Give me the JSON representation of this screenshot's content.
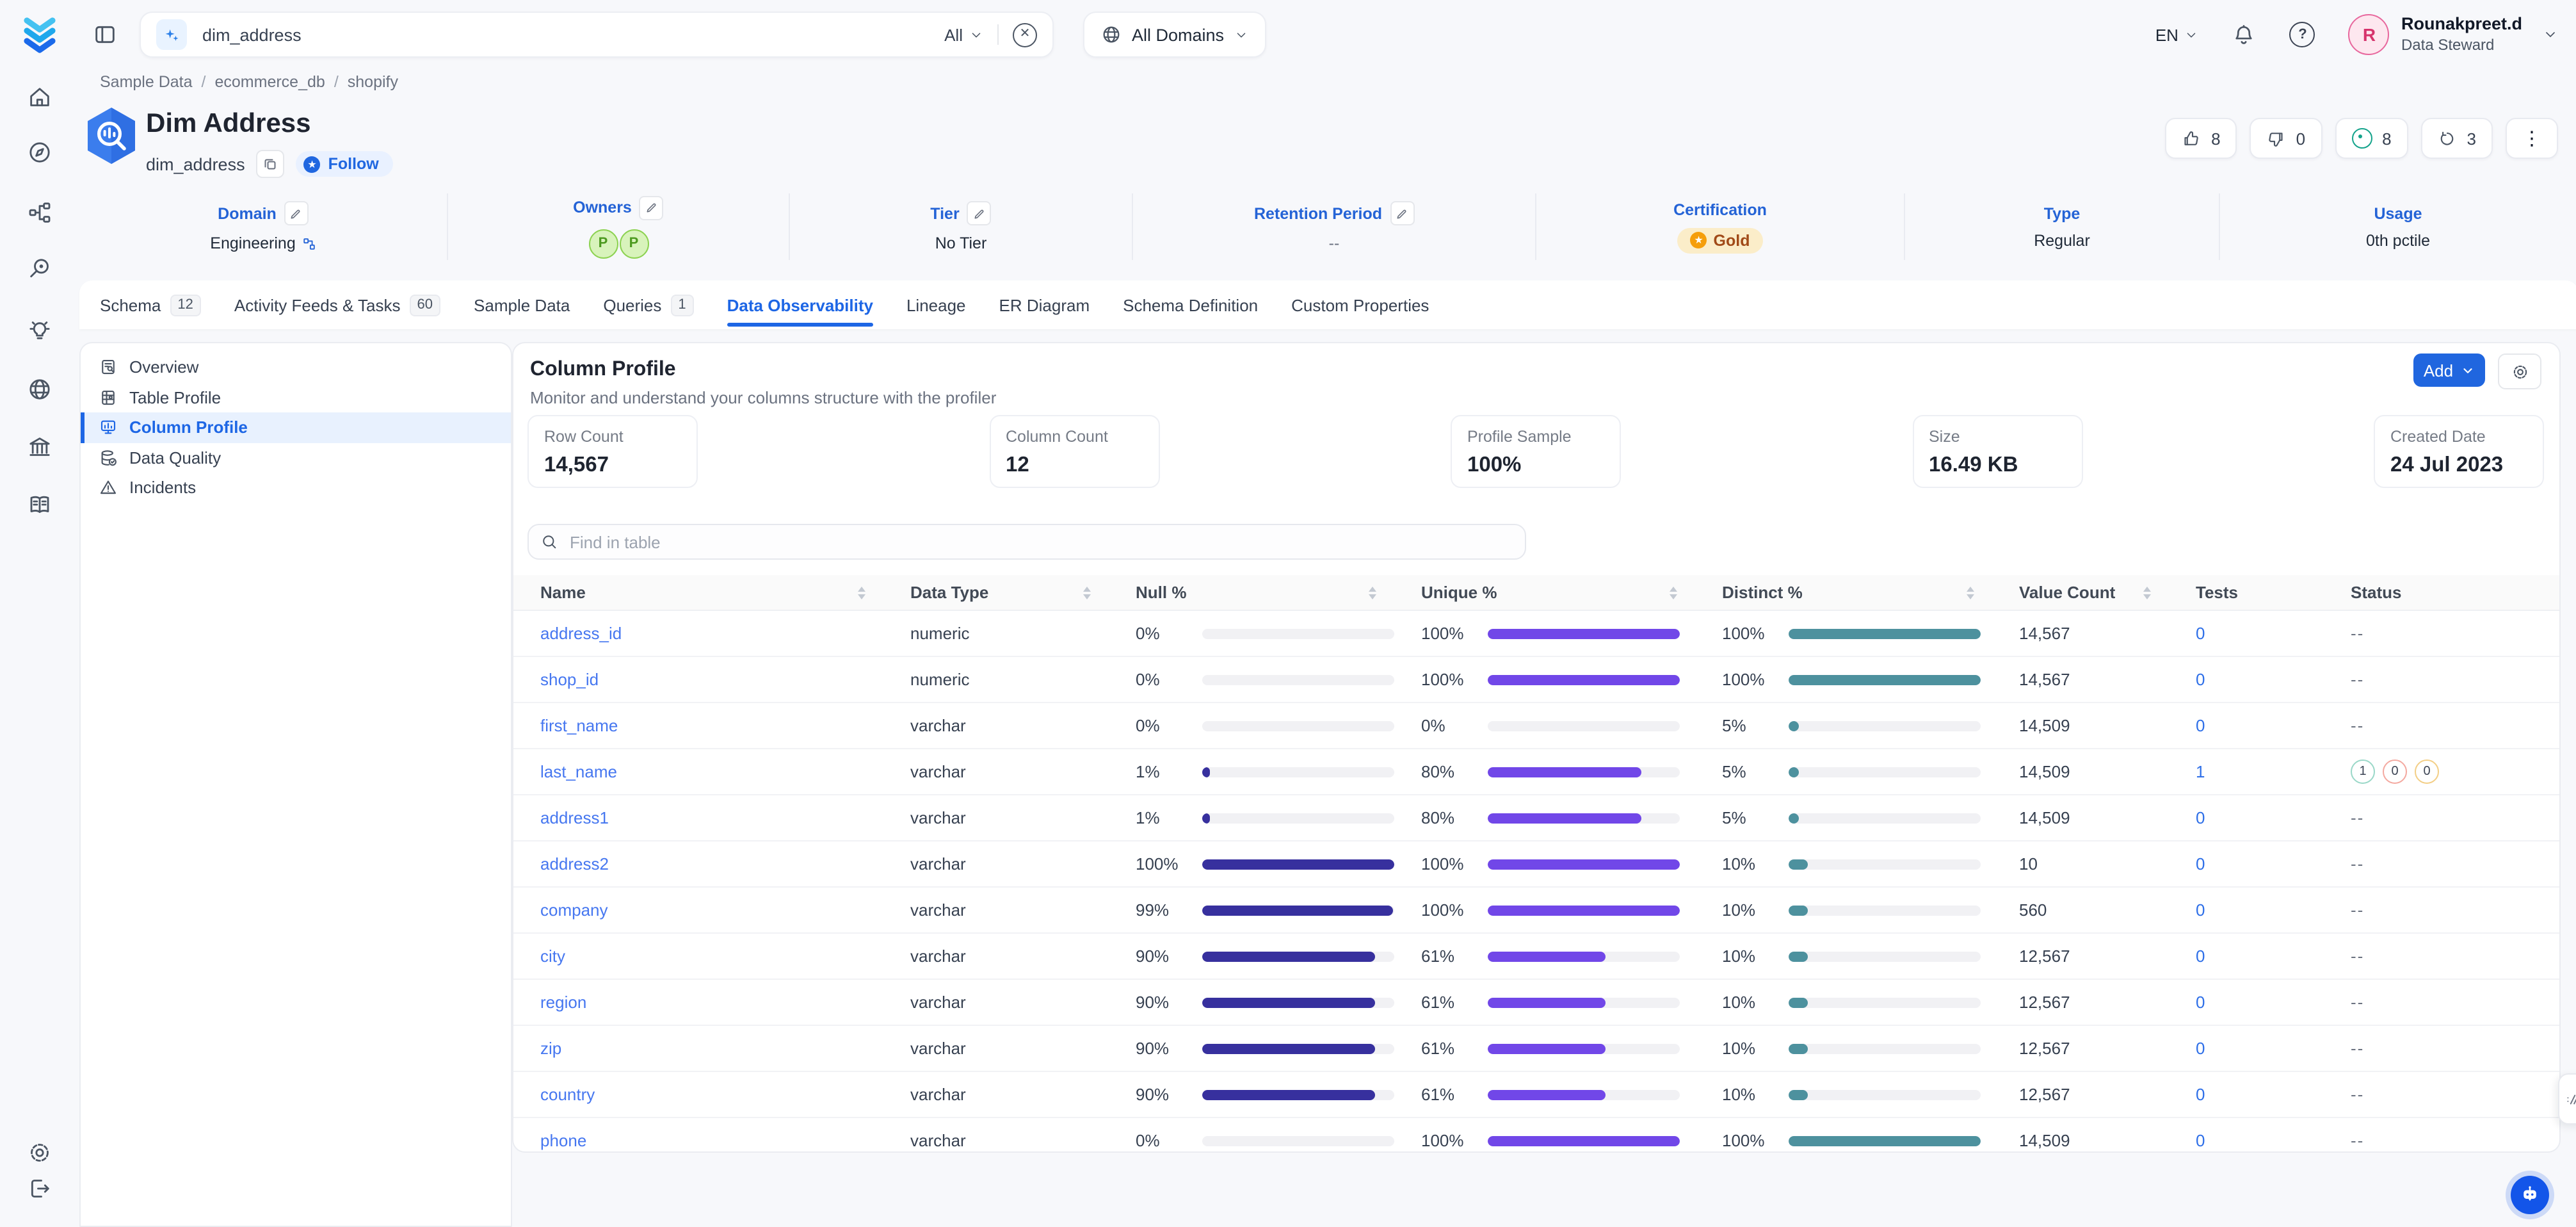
{
  "topbar": {
    "search": {
      "value": "dim_address",
      "scope": "All"
    },
    "domains_filter": "All Domains",
    "language": "EN",
    "user": {
      "initial": "R",
      "name": "Rounakpreet.d",
      "role": "Data Steward"
    }
  },
  "breadcrumb": [
    "Sample Data",
    "ecommerce_db",
    "shopify"
  ],
  "entity": {
    "title": "Dim Address",
    "name": "dim_address",
    "follow_label": "Follow",
    "actions": {
      "likes": "8",
      "dislikes": "0",
      "conversations": "8",
      "versions": "3"
    }
  },
  "metadata": [
    {
      "label": "Domain",
      "value": "Engineering",
      "editable": true,
      "kind": "domain"
    },
    {
      "label": "Owners",
      "avatars": [
        "P",
        "P"
      ],
      "editable": true,
      "kind": "owners"
    },
    {
      "label": "Tier",
      "value": "No Tier",
      "editable": true,
      "kind": "text"
    },
    {
      "label": "Retention Period",
      "value": "--",
      "editable": true,
      "kind": "text"
    },
    {
      "label": "Certification",
      "value": "Gold",
      "editable": false,
      "kind": "certification"
    },
    {
      "label": "Type",
      "value": "Regular",
      "editable": false,
      "kind": "text"
    },
    {
      "label": "Usage",
      "value": "0th pctile",
      "editable": false,
      "kind": "text"
    }
  ],
  "tabs": [
    {
      "label": "Schema",
      "count": "12"
    },
    {
      "label": "Activity Feeds & Tasks",
      "count": "60"
    },
    {
      "label": "Sample Data"
    },
    {
      "label": "Queries",
      "count": "1"
    },
    {
      "label": "Data Observability",
      "active": true
    },
    {
      "label": "Lineage"
    },
    {
      "label": "ER Diagram"
    },
    {
      "label": "Schema Definition"
    },
    {
      "label": "Custom Properties"
    }
  ],
  "sidenav": [
    {
      "label": "Overview",
      "icon": "overview-icon"
    },
    {
      "label": "Table Profile",
      "icon": "table-profile-icon"
    },
    {
      "label": "Column Profile",
      "icon": "column-profile-icon",
      "active": true
    },
    {
      "label": "Data Quality",
      "icon": "data-quality-icon"
    },
    {
      "label": "Incidents",
      "icon": "incidents-icon"
    }
  ],
  "profile": {
    "heading": "Column Profile",
    "subheading": "Monitor and understand your columns structure with the profiler",
    "add_button": "Add",
    "summary_cards": [
      {
        "label": "Row Count",
        "value": "14,567"
      },
      {
        "label": "Column Count",
        "value": "12"
      },
      {
        "label": "Profile Sample",
        "value": "100%"
      },
      {
        "label": "Size",
        "value": "16.49 KB"
      },
      {
        "label": "Created Date",
        "value": "24 Jul 2023"
      }
    ],
    "search_placeholder": "Find in table"
  },
  "table": {
    "columns": [
      {
        "label": "Name",
        "sortable": true
      },
      {
        "label": "Data Type",
        "sortable": true
      },
      {
        "label": "Null %",
        "sortable": true
      },
      {
        "label": "Unique %",
        "sortable": true
      },
      {
        "label": "Distinct %",
        "sortable": true
      },
      {
        "label": "Value Count",
        "sortable": true
      },
      {
        "label": "Tests",
        "sortable": false
      },
      {
        "label": "Status",
        "sortable": false
      }
    ],
    "rows": [
      {
        "name": "address_id",
        "data_type": "numeric",
        "null_pct": 0,
        "unique_pct": 100,
        "distinct_pct": 100,
        "value_count": "14,567",
        "tests": "0",
        "status": "--"
      },
      {
        "name": "shop_id",
        "data_type": "numeric",
        "null_pct": 0,
        "unique_pct": 100,
        "distinct_pct": 100,
        "value_count": "14,567",
        "tests": "0",
        "status": "--"
      },
      {
        "name": "first_name",
        "data_type": "varchar",
        "null_pct": 0,
        "unique_pct": 0,
        "distinct_pct": 5,
        "value_count": "14,509",
        "tests": "0",
        "status": "--"
      },
      {
        "name": "last_name",
        "data_type": "varchar",
        "null_pct": 1,
        "unique_pct": 80,
        "distinct_pct": 5,
        "value_count": "14,509",
        "tests": "1",
        "status_badges": [
          {
            "value": "1",
            "state": "success"
          },
          {
            "value": "0",
            "state": "failed"
          },
          {
            "value": "0",
            "state": "aborted"
          }
        ]
      },
      {
        "name": "address1",
        "data_type": "varchar",
        "null_pct": 1,
        "unique_pct": 80,
        "distinct_pct": 5,
        "value_count": "14,509",
        "tests": "0",
        "status": "--"
      },
      {
        "name": "address2",
        "data_type": "varchar",
        "null_pct": 100,
        "unique_pct": 100,
        "distinct_pct": 10,
        "value_count": "10",
        "tests": "0",
        "status": "--"
      },
      {
        "name": "company",
        "data_type": "varchar",
        "null_pct": 99,
        "unique_pct": 100,
        "distinct_pct": 10,
        "value_count": "560",
        "tests": "0",
        "status": "--"
      },
      {
        "name": "city",
        "data_type": "varchar",
        "null_pct": 90,
        "unique_pct": 61,
        "distinct_pct": 10,
        "value_count": "12,567",
        "tests": "0",
        "status": "--"
      },
      {
        "name": "region",
        "data_type": "varchar",
        "null_pct": 90,
        "unique_pct": 61,
        "distinct_pct": 10,
        "value_count": "12,567",
        "tests": "0",
        "status": "--"
      },
      {
        "name": "zip",
        "data_type": "varchar",
        "null_pct": 90,
        "unique_pct": 61,
        "distinct_pct": 10,
        "value_count": "12,567",
        "tests": "0",
        "status": "--"
      },
      {
        "name": "country",
        "data_type": "varchar",
        "null_pct": 90,
        "unique_pct": 61,
        "distinct_pct": 10,
        "value_count": "12,567",
        "tests": "0",
        "status": "--"
      },
      {
        "name": "phone",
        "data_type": "varchar",
        "null_pct": 0,
        "unique_pct": 100,
        "distinct_pct": 100,
        "value_count": "14,509",
        "tests": "0",
        "status": "--"
      }
    ]
  },
  "rail_icons": [
    "home",
    "explore",
    "lineage",
    "observability",
    "insights",
    "domains",
    "govern",
    "glossary"
  ],
  "rail_bottom_icons": [
    "settings",
    "logout"
  ],
  "colors": {
    "primary": "#2067E0",
    "null_bar": "#37309E",
    "unique_bar": "#7147E8",
    "distinct_bar": "#4D919E",
    "certification_gold": "#F59E0B",
    "success_badge": "#9AD8C8",
    "failed_badge": "#F4A9A0",
    "aborted_badge": "#F3CE85"
  }
}
